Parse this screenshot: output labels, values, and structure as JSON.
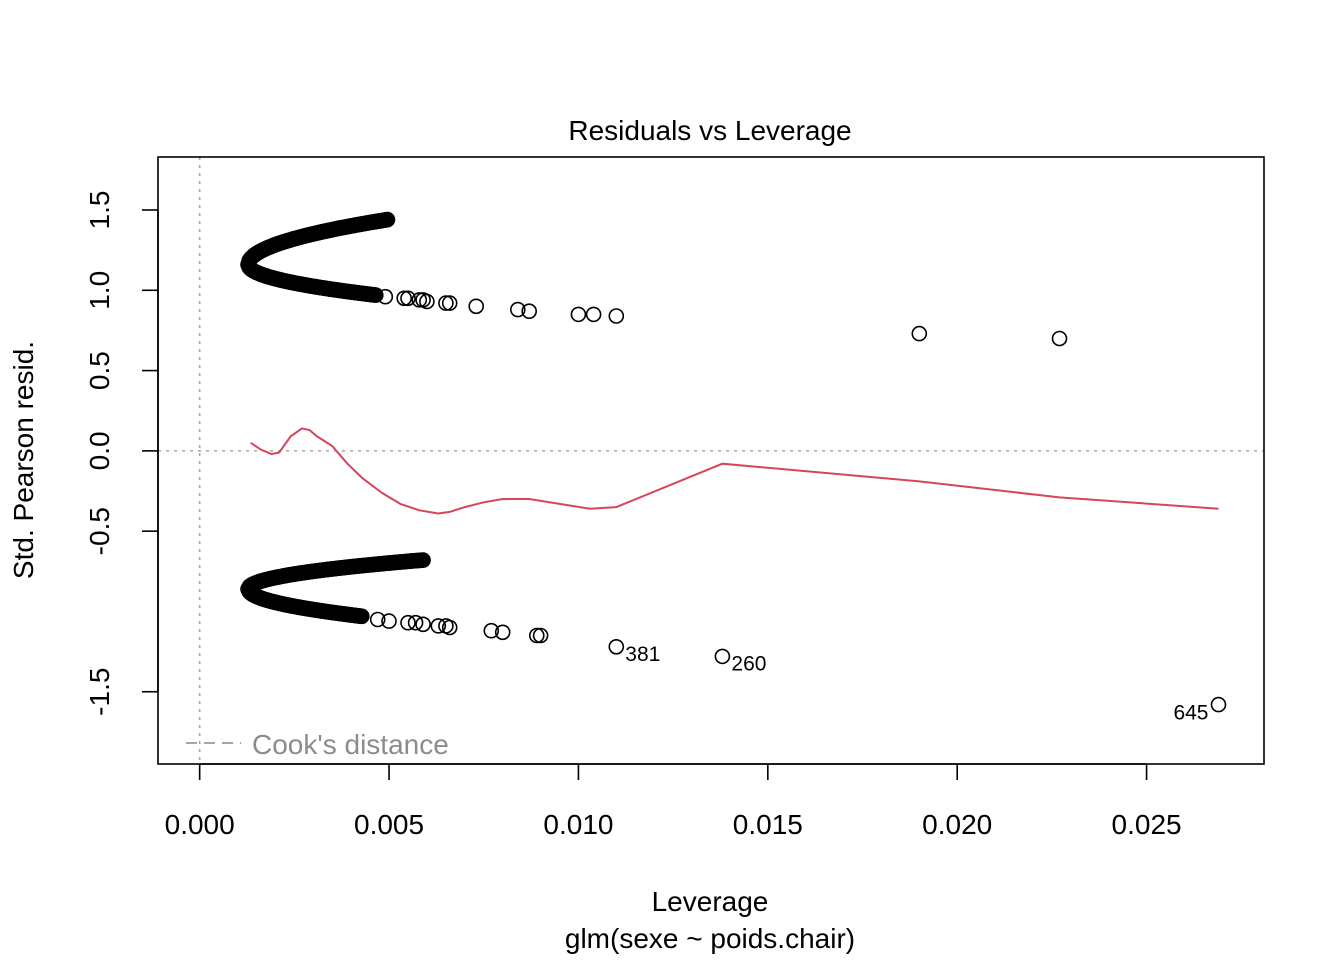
{
  "chart_data": {
    "type": "scatter",
    "title": "Residuals vs Leverage",
    "xlabel": "Leverage",
    "subtitle": "glm(sexe ~ poids.chair)",
    "ylabel": "Std. Pearson resid.",
    "xlim": [
      -0.0011,
      0.0281
    ],
    "ylim": [
      -1.95,
      1.83
    ],
    "x_ticks": [
      0.0,
      0.005,
      0.01,
      0.015,
      0.02,
      0.025
    ],
    "x_tick_labels": [
      "0.000",
      "0.005",
      "0.010",
      "0.015",
      "0.020",
      "0.025"
    ],
    "y_ticks": [
      -1.5,
      -0.5,
      0.0,
      0.5,
      1.0,
      1.5
    ],
    "y_tick_labels": [
      "-1.5",
      "-0.5",
      "0.0",
      "0.5",
      "1.0",
      "1.5"
    ],
    "grid": false,
    "reference_lines": {
      "h": 0.0,
      "v": 0.0,
      "style": "dotted",
      "color": "#a6a6a6"
    },
    "legend": {
      "position": "bottom-left",
      "entries": [
        {
          "label": "Cook's distance",
          "style": "dashed",
          "color": "#a6a6a6"
        }
      ]
    },
    "colors": {
      "points": "#000000",
      "smooth": "#d6455b",
      "reference": "#a6a6a6"
    },
    "upper_branch": {
      "vertex": {
        "x": 0.00128,
        "y": 1.16
      },
      "top_arm": {
        "end_x": 0.00496,
        "end_y": 1.44
      },
      "bottom_arm": {
        "end_x": 0.00465,
        "end_y": 0.97
      }
    },
    "lower_branch": {
      "vertex": {
        "x": 0.00128,
        "y": -0.86
      },
      "top_arm": {
        "end_x": 0.0059,
        "end_y": -0.68
      },
      "bottom_arm": {
        "end_x": 0.00428,
        "end_y": -1.03
      }
    },
    "scatter_points": [
      {
        "x": 0.0049,
        "y": 0.96
      },
      {
        "x": 0.0054,
        "y": 0.95
      },
      {
        "x": 0.0055,
        "y": 0.95
      },
      {
        "x": 0.0058,
        "y": 0.94
      },
      {
        "x": 0.0059,
        "y": 0.94
      },
      {
        "x": 0.006,
        "y": 0.93
      },
      {
        "x": 0.0065,
        "y": 0.92
      },
      {
        "x": 0.0066,
        "y": 0.92
      },
      {
        "x": 0.0073,
        "y": 0.9
      },
      {
        "x": 0.0084,
        "y": 0.88
      },
      {
        "x": 0.0087,
        "y": 0.87
      },
      {
        "x": 0.01,
        "y": 0.85
      },
      {
        "x": 0.0104,
        "y": 0.85
      },
      {
        "x": 0.011,
        "y": 0.84
      },
      {
        "x": 0.019,
        "y": 0.73
      },
      {
        "x": 0.0227,
        "y": 0.7
      },
      {
        "x": 0.0047,
        "y": -1.05
      },
      {
        "x": 0.005,
        "y": -1.06
      },
      {
        "x": 0.0055,
        "y": -1.07
      },
      {
        "x": 0.0057,
        "y": -1.07
      },
      {
        "x": 0.0059,
        "y": -1.08
      },
      {
        "x": 0.0063,
        "y": -1.09
      },
      {
        "x": 0.0065,
        "y": -1.09
      },
      {
        "x": 0.0066,
        "y": -1.1
      },
      {
        "x": 0.0077,
        "y": -1.12
      },
      {
        "x": 0.008,
        "y": -1.13
      },
      {
        "x": 0.0089,
        "y": -1.15
      },
      {
        "x": 0.009,
        "y": -1.15
      },
      {
        "x": 0.011,
        "y": -1.22,
        "label": "381"
      },
      {
        "x": 0.0138,
        "y": -1.28,
        "label": "260"
      },
      {
        "x": 0.0269,
        "y": -1.58,
        "label": "645"
      }
    ],
    "smooth_line": [
      {
        "x": 0.00135,
        "y": 0.05
      },
      {
        "x": 0.0016,
        "y": 0.01
      },
      {
        "x": 0.0019,
        "y": -0.02
      },
      {
        "x": 0.0021,
        "y": -0.01
      },
      {
        "x": 0.0024,
        "y": 0.09
      },
      {
        "x": 0.0027,
        "y": 0.14
      },
      {
        "x": 0.0029,
        "y": 0.13
      },
      {
        "x": 0.0031,
        "y": 0.09
      },
      {
        "x": 0.0035,
        "y": 0.03
      },
      {
        "x": 0.0039,
        "y": -0.08
      },
      {
        "x": 0.0043,
        "y": -0.17
      },
      {
        "x": 0.0048,
        "y": -0.26
      },
      {
        "x": 0.0053,
        "y": -0.33
      },
      {
        "x": 0.0058,
        "y": -0.37
      },
      {
        "x": 0.0063,
        "y": -0.39
      },
      {
        "x": 0.0066,
        "y": -0.38
      },
      {
        "x": 0.007,
        "y": -0.35
      },
      {
        "x": 0.0075,
        "y": -0.32
      },
      {
        "x": 0.008,
        "y": -0.3
      },
      {
        "x": 0.0087,
        "y": -0.3
      },
      {
        "x": 0.0095,
        "y": -0.33
      },
      {
        "x": 0.0103,
        "y": -0.36
      },
      {
        "x": 0.011,
        "y": -0.35
      },
      {
        "x": 0.0138,
        "y": -0.08
      },
      {
        "x": 0.019,
        "y": -0.19
      },
      {
        "x": 0.0227,
        "y": -0.29
      },
      {
        "x": 0.0269,
        "y": -0.36
      }
    ]
  }
}
